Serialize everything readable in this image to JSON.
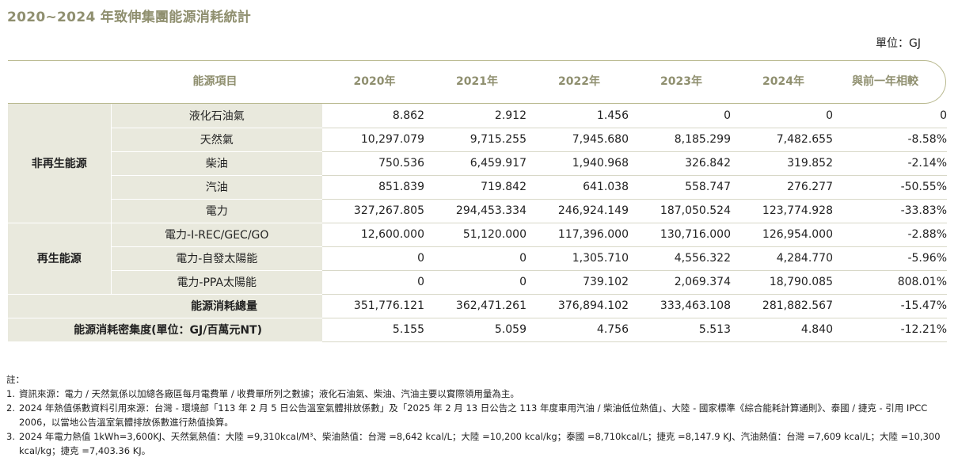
{
  "title": "2020~2024 年致伸集團能源消耗統計",
  "unit": "單位：GJ",
  "header": {
    "item": "能源項目",
    "years": [
      "2020年",
      "2021年",
      "2022年",
      "2023年",
      "2024年"
    ],
    "compare": "與前一年相較"
  },
  "groups": {
    "nonrenewable": "非再生能源",
    "renewable": "再生能源"
  },
  "rows": [
    {
      "label": "液化石油氣",
      "values": [
        "8.862",
        "2.912",
        "1.456",
        "0",
        "0",
        "0"
      ]
    },
    {
      "label": "天然氣",
      "values": [
        "10,297.079",
        "9,715.255",
        "7,945.680",
        "8,185.299",
        "7,482.655",
        "-8.58%"
      ]
    },
    {
      "label": "柴油",
      "values": [
        "750.536",
        "6,459.917",
        "1,940.968",
        "326.842",
        "319.852",
        "-2.14%"
      ]
    },
    {
      "label": "汽油",
      "values": [
        "851.839",
        "719.842",
        "641.038",
        "558.747",
        "276.277",
        "-50.55%"
      ]
    },
    {
      "label": "電力",
      "values": [
        "327,267.805",
        "294,453.334",
        "246,924.149",
        "187,050.524",
        "123,774.928",
        "-33.83%"
      ]
    },
    {
      "label": "電力-I-REC/GEC/GO",
      "values": [
        "12,600.000",
        "51,120.000",
        "117,396.000",
        "130,716.000",
        "126,954.000",
        "-2.88%"
      ]
    },
    {
      "label": "電力-自發太陽能",
      "values": [
        "0",
        "0",
        "1,305.710",
        "4,556.322",
        "4,284.770",
        "-5.96%"
      ]
    },
    {
      "label": "電力-PPA太陽能",
      "values": [
        "0",
        "0",
        "739.102",
        "2,069.374",
        "18,790.085",
        "808.01%"
      ]
    }
  ],
  "total": {
    "label": "能源消耗總量",
    "values": [
      "351,776.121",
      "362,471.261",
      "376,894.102",
      "333,463.108",
      "281,882.567",
      "-15.47%"
    ]
  },
  "intensity": {
    "label": "能源消耗密集度(單位：GJ/百萬元NT)",
    "values": [
      "5.155",
      "5.059",
      "4.756",
      "5.513",
      "4.840",
      "-12.21%"
    ]
  },
  "notes": {
    "heading": "註：",
    "items": [
      {
        "num": "1.",
        "text": "資訊來源：電力 / 天然氣係以加總各廠區每月電費單 / 收費單所列之數據；液化石油氣、柴油、汽油主要以實際領用量為主。"
      },
      {
        "num": "2.",
        "text": "2024 年熱值係數資料引用來源：台灣 - 環境部「113 年 2 月 5 日公告溫室氣體排放係數」及「2025 年 2 月 13 日公告之 113 年度車用汽油 / 柴油低位熱值」、大陸 - 國家標準《綜合能耗計算通則》、泰國 / 捷克 - 引用 IPCC 2006，以當地公告溫室氣體排放係數進行熱值換算。"
      },
      {
        "num": "3.",
        "text": "2024 年電力熱值 1kWh=3,600KJ、天然氣熱值：大陸 =9,310kcal/M³、柴油熱值：台灣 =8,642 kcal/L；大陸 =10,200 kcal/kg；泰國 =8,710kcal/L；捷克 =8,147.9 KJ、汽油熱值：台灣 =7,609 kcal/L；大陸 =10,300 kcal/kg；捷克 =7,403.36 KJ。"
      }
    ]
  }
}
